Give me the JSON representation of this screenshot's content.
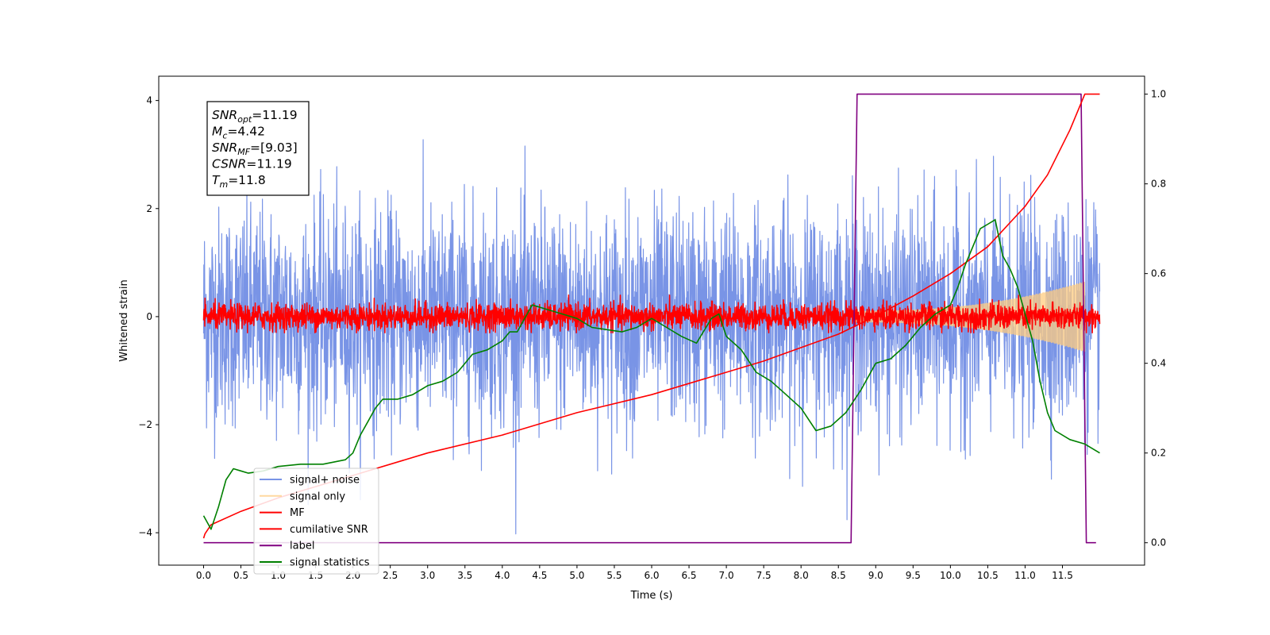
{
  "chart_data": {
    "type": "line",
    "xlabel": "Time (s)",
    "ylabel": "Whitened strain",
    "xlim": [
      -0.6,
      12.6
    ],
    "ylim": [
      -4.6,
      4.45
    ],
    "y2lim": [
      -0.05,
      1.04
    ],
    "x_ticks": [
      0.0,
      0.5,
      1.0,
      1.5,
      2.0,
      2.5,
      3.0,
      3.5,
      4.0,
      4.5,
      5.0,
      5.5,
      6.0,
      6.5,
      7.0,
      7.5,
      8.0,
      8.5,
      9.0,
      9.5,
      10.0,
      10.5,
      11.0,
      11.5
    ],
    "x_tick_labels": [
      "0.0",
      "0.5",
      "1.0",
      "1.5",
      "2.0",
      "2.5",
      "3.0",
      "3.5",
      "4.0",
      "4.5",
      "5.0",
      "5.5",
      "6.0",
      "6.5",
      "7.0",
      "7.5",
      "8.0",
      "8.5",
      "9.0",
      "9.5",
      "10.0",
      "10.5",
      "11.0",
      "11.5"
    ],
    "y_ticks": [
      -4,
      -2,
      0,
      2,
      4
    ],
    "y_tick_labels": [
      "−4",
      "−2",
      "0",
      "2",
      "4"
    ],
    "y2_ticks": [
      0.0,
      0.2,
      0.4,
      0.6,
      0.8,
      1.0
    ],
    "y2_tick_labels": [
      "0.0",
      "0.2",
      "0.4",
      "0.6",
      "0.8",
      "1.0"
    ],
    "grid": false,
    "legend_position": "lower-left",
    "annotation_box": {
      "position": "top-left",
      "lines": [
        {
          "sym": "SNR",
          "sub": "opt",
          "val": "=11.19"
        },
        {
          "sym": "M",
          "sub": "c",
          "val": "=4.42"
        },
        {
          "sym": "SNR",
          "sub": "MF",
          "val": "=[9.03]"
        },
        {
          "sym": "CSNR",
          "sub": "",
          "val": "=11.19"
        },
        {
          "sym": "T",
          "sub": "m",
          "val": "=11.8"
        }
      ]
    },
    "series": [
      {
        "name": "signal+ noise",
        "color": "#7994e6",
        "axis": "left",
        "kind": "noise",
        "x_range": [
          0.0,
          12.0
        ],
        "std": 1.0,
        "clip": [
          -4.1,
          4.05
        ]
      },
      {
        "name": "signal only",
        "color": "#ffcc80",
        "axis": "left",
        "kind": "chirp",
        "x_range": [
          8.7,
          11.8
        ],
        "amplitude_start": 0.1,
        "amplitude_end": 0.65
      },
      {
        "name": "MF",
        "color": "#ff0000",
        "axis": "left",
        "kind": "noise",
        "x_range": [
          0.0,
          12.0
        ],
        "std": 0.12,
        "clip": [
          -0.3,
          0.4
        ]
      },
      {
        "name": "cumilative SNR",
        "color": "#ff0000",
        "axis": "right",
        "x": [
          0.0,
          0.02,
          0.1,
          0.5,
          1.0,
          2.0,
          3.0,
          4.0,
          5.0,
          6.0,
          7.0,
          7.5,
          8.0,
          8.5,
          9.0,
          9.5,
          10.0,
          10.5,
          11.0,
          11.3,
          11.6,
          11.8,
          12.0
        ],
        "y": [
          0.01,
          0.02,
          0.04,
          0.07,
          0.1,
          0.15,
          0.2,
          0.24,
          0.29,
          0.33,
          0.38,
          0.405,
          0.435,
          0.465,
          0.505,
          0.55,
          0.6,
          0.66,
          0.75,
          0.82,
          0.92,
          1.0,
          1.0
        ]
      },
      {
        "name": "label",
        "color": "#800080",
        "axis": "right",
        "x": [
          0.0,
          8.67,
          8.75,
          11.75,
          11.82,
          11.95
        ],
        "y": [
          0.0,
          0.0,
          1.0,
          1.0,
          0.0,
          0.0
        ]
      },
      {
        "name": "signal statistics",
        "color": "#008000",
        "axis": "right",
        "x": [
          0.0,
          0.1,
          0.2,
          0.3,
          0.4,
          0.5,
          0.6,
          0.8,
          1.0,
          1.3,
          1.6,
          1.9,
          2.0,
          2.1,
          2.2,
          2.3,
          2.4,
          2.5,
          2.6,
          2.8,
          3.0,
          3.2,
          3.4,
          3.5,
          3.6,
          3.8,
          4.0,
          4.1,
          4.2,
          4.3,
          4.4,
          4.6,
          4.8,
          5.0,
          5.2,
          5.4,
          5.6,
          5.8,
          6.0,
          6.2,
          6.4,
          6.6,
          6.8,
          6.9,
          7.0,
          7.2,
          7.4,
          7.6,
          7.8,
          8.0,
          8.2,
          8.4,
          8.6,
          8.8,
          9.0,
          9.2,
          9.4,
          9.6,
          9.8,
          10.0,
          10.1,
          10.2,
          10.3,
          10.4,
          10.5,
          10.6,
          10.7,
          10.8,
          10.9,
          11.0,
          11.1,
          11.2,
          11.3,
          11.4,
          11.6,
          11.8,
          12.0
        ],
        "y": [
          0.06,
          0.03,
          0.08,
          0.14,
          0.165,
          0.16,
          0.155,
          0.16,
          0.17,
          0.175,
          0.175,
          0.185,
          0.2,
          0.24,
          0.27,
          0.3,
          0.32,
          0.32,
          0.32,
          0.33,
          0.35,
          0.36,
          0.38,
          0.4,
          0.42,
          0.43,
          0.45,
          0.47,
          0.47,
          0.5,
          0.53,
          0.52,
          0.51,
          0.5,
          0.48,
          0.475,
          0.47,
          0.48,
          0.5,
          0.48,
          0.46,
          0.445,
          0.5,
          0.51,
          0.46,
          0.43,
          0.38,
          0.36,
          0.33,
          0.3,
          0.25,
          0.26,
          0.29,
          0.34,
          0.4,
          0.41,
          0.44,
          0.48,
          0.51,
          0.53,
          0.57,
          0.62,
          0.66,
          0.7,
          0.71,
          0.72,
          0.64,
          0.61,
          0.57,
          0.51,
          0.45,
          0.36,
          0.29,
          0.25,
          0.23,
          0.22,
          0.2
        ]
      }
    ]
  }
}
